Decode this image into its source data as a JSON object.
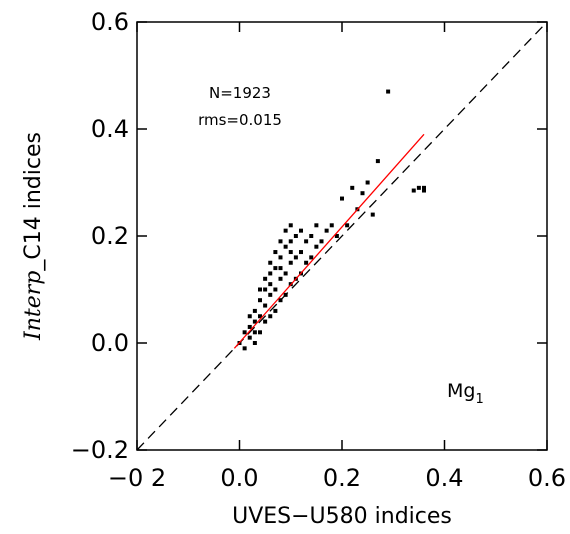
{
  "chart_data": {
    "type": "scatter",
    "xlabel": "UVES−U580 indices",
    "ylabel": {
      "italic": "Interp",
      "rest": "_C14 indices"
    },
    "annotations": [
      "N=1923",
      "rms=0.015"
    ],
    "panel_label": {
      "text": "Mg",
      "sub": "1"
    },
    "xlim": [
      -0.2,
      0.6
    ],
    "ylim": [
      -0.2,
      0.6
    ],
    "xticks": [
      {
        "value": -0.2,
        "label": "−0 2"
      },
      {
        "value": 0.0,
        "label": "0.0"
      },
      0.2,
      0.4,
      0.6
    ],
    "yticks": [
      {
        "value": -0.2,
        "label": "−0.2"
      },
      {
        "value": 0.0,
        "label": "0.0"
      },
      0.2,
      0.4,
      0.6
    ],
    "color": "#000000",
    "x": [
      0.0,
      0.01,
      0.01,
      0.02,
      0.02,
      0.03,
      0.03,
      0.03,
      0.04,
      0.04,
      0.04,
      0.05,
      0.05,
      0.05,
      0.05,
      0.06,
      0.06,
      0.06,
      0.06,
      0.07,
      0.07,
      0.07,
      0.07,
      0.08,
      0.08,
      0.08,
      0.08,
      0.09,
      0.09,
      0.09,
      0.09,
      0.1,
      0.1,
      0.1,
      0.1,
      0.11,
      0.11,
      0.11,
      0.12,
      0.12,
      0.12,
      0.13,
      0.13,
      0.14,
      0.14,
      0.15,
      0.15,
      0.16,
      0.17,
      0.18,
      0.19,
      0.2,
      0.21,
      0.22,
      0.23,
      0.24,
      0.25,
      0.26,
      0.27,
      0.29,
      0.34,
      0.35,
      0.36,
      0.36,
      0.02,
      0.03,
      0.04,
      0.06,
      0.08,
      0.1
    ],
    "y": [
      0.0,
      0.02,
      -0.01,
      0.03,
      0.01,
      0.06,
      0.02,
      0.04,
      0.08,
      0.05,
      0.02,
      0.1,
      0.07,
      0.04,
      0.12,
      0.13,
      0.09,
      0.05,
      0.15,
      0.14,
      0.1,
      0.06,
      0.17,
      0.16,
      0.12,
      0.08,
      0.19,
      0.18,
      0.13,
      0.09,
      0.21,
      0.19,
      0.15,
      0.11,
      0.22,
      0.2,
      0.16,
      0.12,
      0.21,
      0.17,
      0.13,
      0.19,
      0.15,
      0.2,
      0.16,
      0.18,
      0.22,
      0.19,
      0.21,
      0.22,
      0.2,
      0.27,
      0.22,
      0.29,
      0.25,
      0.28,
      0.3,
      0.24,
      0.34,
      0.47,
      0.285,
      0.29,
      0.285,
      0.29,
      0.05,
      0.0,
      0.1,
      0.11,
      0.14,
      0.17
    ],
    "reference_line": {
      "x": [
        -0.2,
        0.6
      ],
      "y": [
        -0.2,
        0.6
      ],
      "color": "#000000",
      "dashed": true
    },
    "fit_line": {
      "x": [
        -0.01,
        0.36
      ],
      "y": [
        -0.01,
        0.39
      ],
      "color": "#ff0000",
      "dashed": false
    }
  }
}
